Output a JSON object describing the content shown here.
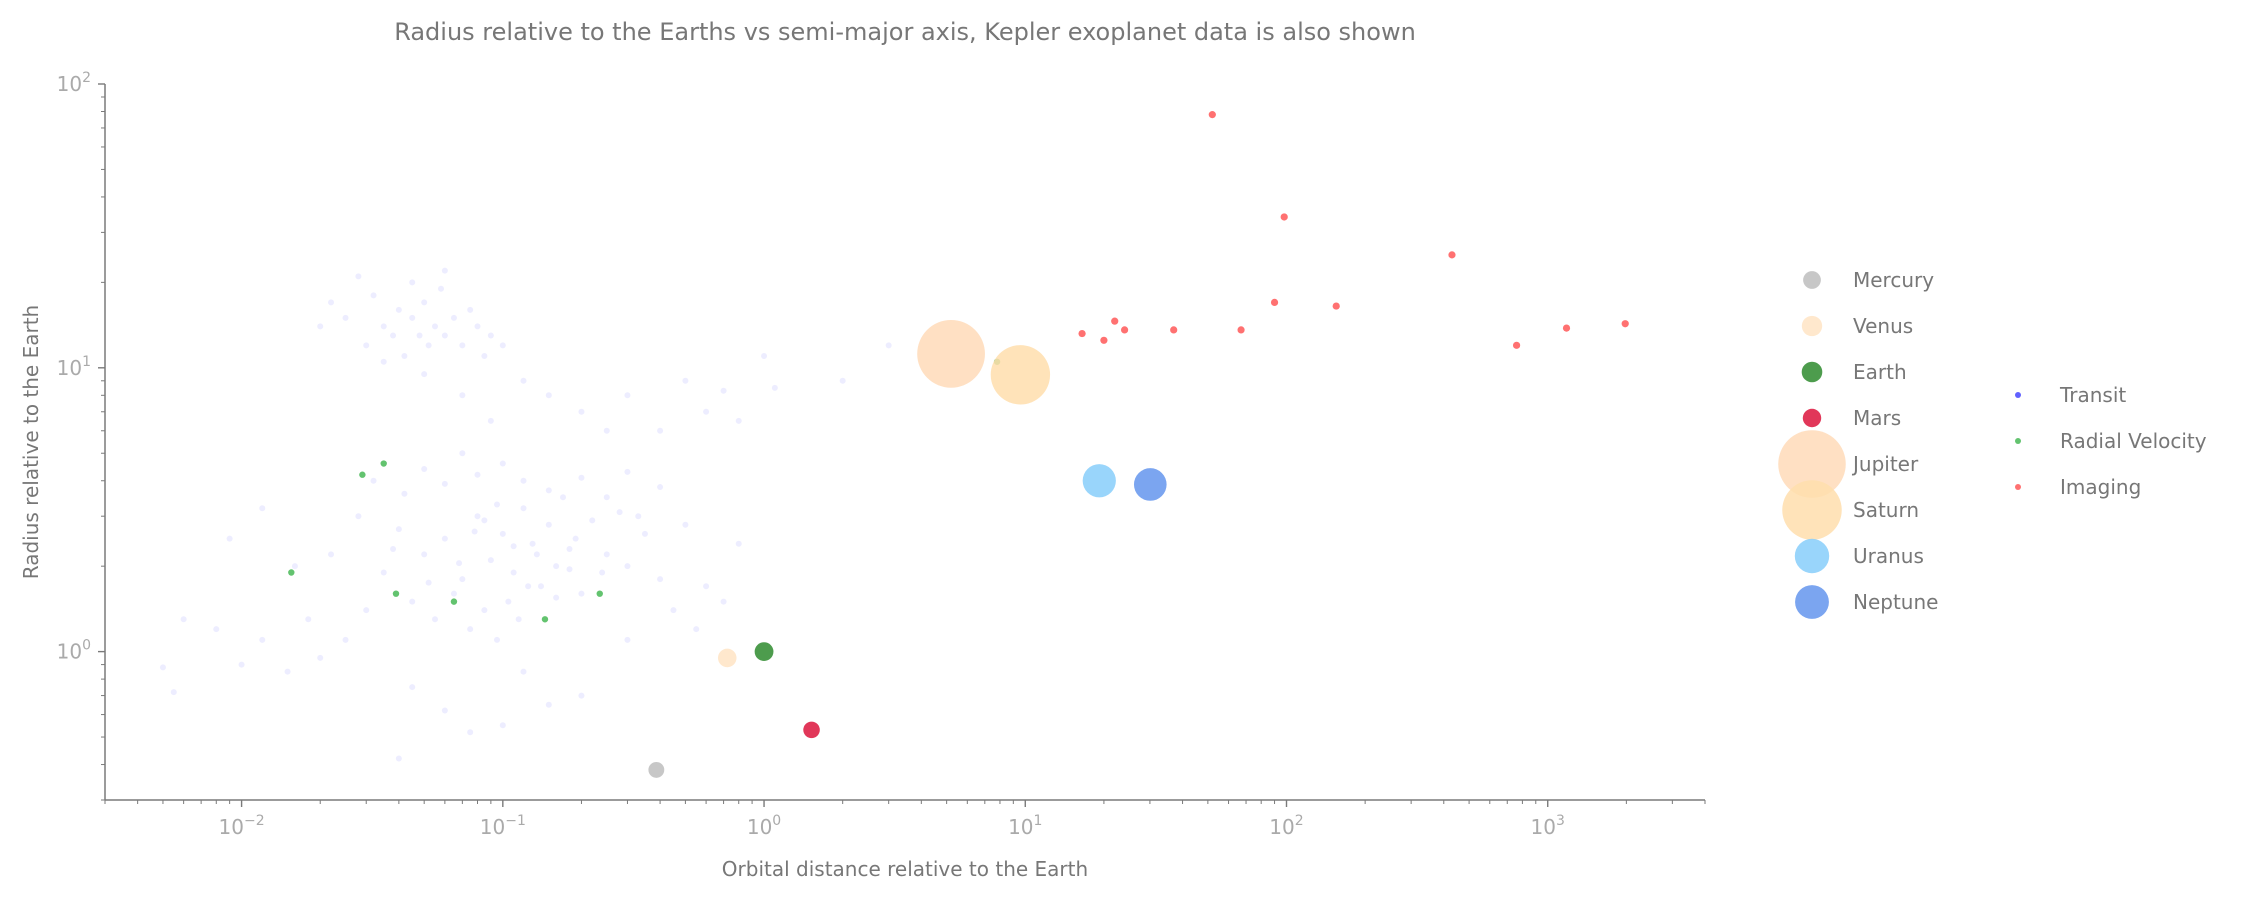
{
  "chart_data": {
    "type": "scatter",
    "title": "Radius relative to the Earths vs semi-major axis, Kepler exoplanet data is also shown",
    "xlabel": "Orbital distance relative to the Earth",
    "ylabel": "Radius relative to the Earth",
    "xscale": "log",
    "yscale": "log",
    "xlim": [
      0.003,
      4000
    ],
    "ylim": [
      0.3,
      100
    ],
    "x_ticks": [
      {
        "value": 0.01,
        "base": "10",
        "exp": "−2"
      },
      {
        "value": 0.1,
        "base": "10",
        "exp": "−1"
      },
      {
        "value": 1,
        "base": "10",
        "exp": "0"
      },
      {
        "value": 10,
        "base": "10",
        "exp": "1"
      },
      {
        "value": 100,
        "base": "10",
        "exp": "2"
      },
      {
        "value": 1000,
        "base": "10",
        "exp": "3"
      }
    ],
    "y_ticks": [
      {
        "value": 1,
        "base": "10",
        "exp": "0"
      },
      {
        "value": 10,
        "base": "10",
        "exp": "1"
      },
      {
        "value": 100,
        "base": "10",
        "exp": "2"
      }
    ],
    "grid": false,
    "planets": [
      {
        "name": "Mercury",
        "x": 0.387,
        "y": 0.383,
        "color": "#bdbdbd",
        "size": 0.383
      },
      {
        "name": "Venus",
        "x": 0.723,
        "y": 0.95,
        "color": "#ffe4c4",
        "size": 0.95
      },
      {
        "name": "Earth",
        "x": 1.0,
        "y": 1.0,
        "color": "#2e8b2e",
        "size": 1.0
      },
      {
        "name": "Mars",
        "x": 1.52,
        "y": 0.53,
        "color": "#dc143c",
        "size": 0.53
      },
      {
        "name": "Jupiter",
        "x": 5.2,
        "y": 11.2,
        "color": "#ffdab9",
        "size": 11.2
      },
      {
        "name": "Saturn",
        "x": 9.58,
        "y": 9.45,
        "color": "#ffdead",
        "size": 9.45
      },
      {
        "name": "Uranus",
        "x": 19.2,
        "y": 4.0,
        "color": "#87cefa",
        "size": 4.0
      },
      {
        "name": "Neptune",
        "x": 30.1,
        "y": 3.88,
        "color": "#6495ed",
        "size": 3.88
      }
    ],
    "exoplanet_series": [
      {
        "name": "Transit",
        "color": "#3a3aff",
        "points": [
          [
            0.025,
            15
          ],
          [
            0.03,
            12
          ],
          [
            0.032,
            18
          ],
          [
            0.035,
            14
          ],
          [
            0.038,
            13
          ],
          [
            0.04,
            16
          ],
          [
            0.042,
            11
          ],
          [
            0.045,
            15
          ],
          [
            0.048,
            13
          ],
          [
            0.05,
            17
          ],
          [
            0.052,
            12
          ],
          [
            0.055,
            14
          ],
          [
            0.058,
            19
          ],
          [
            0.06,
            13
          ],
          [
            0.065,
            15
          ],
          [
            0.07,
            12
          ],
          [
            0.075,
            16
          ],
          [
            0.08,
            14
          ],
          [
            0.085,
            11
          ],
          [
            0.09,
            13
          ],
          [
            0.028,
            21
          ],
          [
            0.045,
            20
          ],
          [
            0.06,
            22
          ],
          [
            0.02,
            14
          ],
          [
            0.022,
            17
          ],
          [
            0.035,
            10.5
          ],
          [
            0.05,
            9.5
          ],
          [
            0.1,
            12
          ],
          [
            0.12,
            9
          ],
          [
            0.15,
            8
          ],
          [
            0.2,
            7
          ],
          [
            0.25,
            6
          ],
          [
            0.3,
            8
          ],
          [
            0.4,
            6
          ],
          [
            0.5,
            9
          ],
          [
            0.6,
            7
          ],
          [
            0.7,
            8.3
          ],
          [
            0.8,
            6.5
          ],
          [
            1.0,
            11
          ],
          [
            1.1,
            8.5
          ],
          [
            2.0,
            9
          ],
          [
            3.0,
            12
          ],
          [
            0.07,
            8
          ],
          [
            0.09,
            6.5
          ],
          [
            0.05,
            2.2
          ],
          [
            0.06,
            2.5
          ],
          [
            0.07,
            1.8
          ],
          [
            0.08,
            3.0
          ],
          [
            0.09,
            2.1
          ],
          [
            0.1,
            2.6
          ],
          [
            0.11,
            1.9
          ],
          [
            0.12,
            3.2
          ],
          [
            0.13,
            2.4
          ],
          [
            0.14,
            1.7
          ],
          [
            0.15,
            2.8
          ],
          [
            0.16,
            2.0
          ],
          [
            0.17,
            3.5
          ],
          [
            0.18,
            2.3
          ],
          [
            0.2,
            1.6
          ],
          [
            0.22,
            2.9
          ],
          [
            0.25,
            2.2
          ],
          [
            0.28,
            3.1
          ],
          [
            0.3,
            2.0
          ],
          [
            0.35,
            2.6
          ],
          [
            0.4,
            1.8
          ],
          [
            0.045,
            1.5
          ],
          [
            0.055,
            1.3
          ],
          [
            0.065,
            1.6
          ],
          [
            0.075,
            1.2
          ],
          [
            0.085,
            1.4
          ],
          [
            0.095,
            1.1
          ],
          [
            0.105,
            1.5
          ],
          [
            0.115,
            1.3
          ],
          [
            0.125,
            1.7
          ],
          [
            0.035,
            1.9
          ],
          [
            0.04,
            2.7
          ],
          [
            0.03,
            1.4
          ],
          [
            0.025,
            1.1
          ],
          [
            0.02,
            0.95
          ],
          [
            0.018,
            1.3
          ],
          [
            0.015,
            0.85
          ],
          [
            0.012,
            1.1
          ],
          [
            0.01,
            0.9
          ],
          [
            0.008,
            1.2
          ],
          [
            0.006,
            1.3
          ],
          [
            0.005,
            0.88
          ],
          [
            0.0055,
            0.72
          ],
          [
            0.009,
            2.5
          ],
          [
            0.012,
            3.2
          ],
          [
            0.016,
            2.0
          ],
          [
            0.022,
            2.2
          ],
          [
            0.028,
            3.0
          ],
          [
            0.032,
            4.0
          ],
          [
            0.042,
            3.6
          ],
          [
            0.05,
            4.4
          ],
          [
            0.06,
            3.9
          ],
          [
            0.07,
            5.0
          ],
          [
            0.08,
            4.2
          ],
          [
            0.1,
            4.6
          ],
          [
            0.12,
            4.0
          ],
          [
            0.15,
            3.7
          ],
          [
            0.2,
            4.1
          ],
          [
            0.25,
            3.5
          ],
          [
            0.3,
            4.3
          ],
          [
            0.4,
            3.8
          ],
          [
            0.5,
            2.8
          ],
          [
            0.6,
            1.7
          ],
          [
            0.7,
            1.5
          ],
          [
            0.8,
            2.4
          ],
          [
            0.045,
            0.75
          ],
          [
            0.06,
            0.62
          ],
          [
            0.075,
            0.52
          ],
          [
            0.1,
            0.55
          ],
          [
            0.15,
            0.65
          ],
          [
            0.2,
            0.7
          ],
          [
            0.04,
            0.42
          ],
          [
            0.12,
            0.85
          ],
          [
            0.3,
            1.1
          ],
          [
            0.45,
            1.4
          ],
          [
            0.55,
            1.2
          ],
          [
            0.085,
            2.9
          ],
          [
            0.095,
            3.3
          ],
          [
            0.135,
            2.2
          ],
          [
            0.19,
            2.5
          ],
          [
            0.24,
            1.9
          ],
          [
            0.33,
            3.0
          ],
          [
            0.038,
            2.3
          ],
          [
            0.052,
            1.75
          ],
          [
            0.068,
            2.05
          ],
          [
            0.078,
            2.65
          ],
          [
            0.11,
            2.35
          ],
          [
            0.16,
            1.55
          ],
          [
            0.18,
            1.95
          ]
        ]
      },
      {
        "name": "Radial Velocity",
        "color": "#3cb44b",
        "points": [
          [
            0.0155,
            1.9
          ],
          [
            0.029,
            4.2
          ],
          [
            0.035,
            4.6
          ],
          [
            0.039,
            1.6
          ],
          [
            0.065,
            1.5
          ],
          [
            0.145,
            1.3
          ],
          [
            0.235,
            1.6
          ],
          [
            7.8,
            10.5
          ]
        ]
      },
      {
        "name": "Imaging",
        "color": "#ff4d4d",
        "points": [
          [
            52,
            78
          ],
          [
            98,
            34
          ],
          [
            430,
            25
          ],
          [
            90,
            17
          ],
          [
            155,
            16.5
          ],
          [
            16.5,
            13.2
          ],
          [
            20,
            12.5
          ],
          [
            22,
            14.6
          ],
          [
            24,
            13.6
          ],
          [
            37,
            13.6
          ],
          [
            67,
            13.6
          ],
          [
            760,
            12
          ],
          [
            1180,
            13.8
          ],
          [
            1980,
            14.3
          ]
        ]
      }
    ],
    "legend": {
      "planets_placement": "right",
      "methods_placement": "far-right"
    }
  }
}
